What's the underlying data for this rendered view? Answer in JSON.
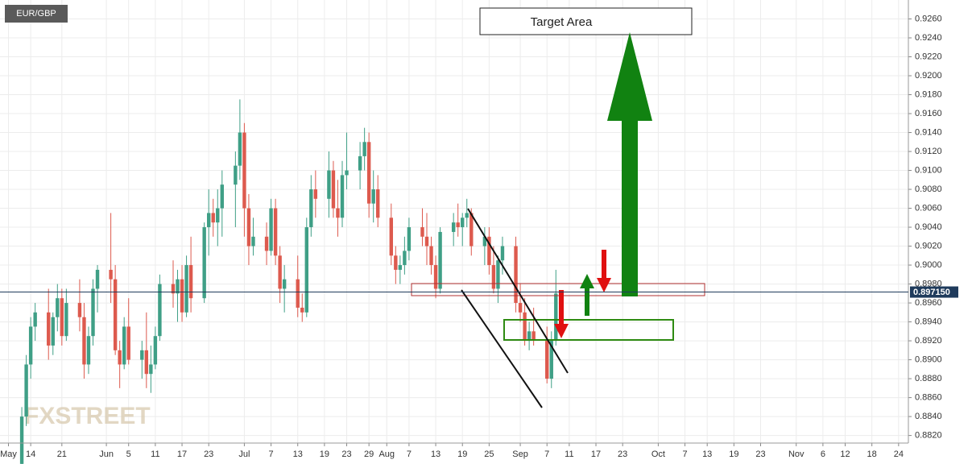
{
  "chart_data": {
    "type": "candlestick",
    "title": "EUR/GBP",
    "annotation": "Target Area",
    "watermark": "FXSTREET",
    "up_color": "#3f9f86",
    "down_color": "#dd5a4e",
    "grid": true,
    "xlim": [
      128.1,
      332.2
    ],
    "ylim": [
      0.8812,
      0.928
    ],
    "xticks": [
      {
        "value": 130,
        "label": "May"
      },
      {
        "value": 135,
        "label": "14"
      },
      {
        "value": 142,
        "label": "21"
      },
      {
        "value": 152,
        "label": "Jun"
      },
      {
        "value": 157,
        "label": "5"
      },
      {
        "value": 163,
        "label": "11"
      },
      {
        "value": 169,
        "label": "17"
      },
      {
        "value": 175,
        "label": "23"
      },
      {
        "value": 183,
        "label": "Jul"
      },
      {
        "value": 189,
        "label": "7"
      },
      {
        "value": 195,
        "label": "13"
      },
      {
        "value": 201,
        "label": "19"
      },
      {
        "value": 206,
        "label": "23"
      },
      {
        "value": 211,
        "label": "29"
      },
      {
        "value": 215,
        "label": "Aug"
      },
      {
        "value": 220,
        "label": "7"
      },
      {
        "value": 226,
        "label": "13"
      },
      {
        "value": 232,
        "label": "19"
      },
      {
        "value": 238,
        "label": "25"
      },
      {
        "value": 245,
        "label": "Sep"
      },
      {
        "value": 251,
        "label": "7"
      },
      {
        "value": 256,
        "label": "11"
      },
      {
        "value": 262,
        "label": "17"
      },
      {
        "value": 268,
        "label": "23"
      },
      {
        "value": 276,
        "label": "Oct"
      },
      {
        "value": 282,
        "label": "7"
      },
      {
        "value": 287,
        "label": "13"
      },
      {
        "value": 293,
        "label": "19"
      },
      {
        "value": 299,
        "label": "23"
      },
      {
        "value": 307,
        "label": "Nov"
      },
      {
        "value": 313,
        "label": "6"
      },
      {
        "value": 318,
        "label": "12"
      },
      {
        "value": 324,
        "label": "18"
      },
      {
        "value": 330,
        "label": "24"
      }
    ],
    "yticks": [
      {
        "value": 0.882,
        "label": "0.8820"
      },
      {
        "value": 0.884,
        "label": "0.8840"
      },
      {
        "value": 0.886,
        "label": "0.8860"
      },
      {
        "value": 0.888,
        "label": "0.8880"
      },
      {
        "value": 0.89,
        "label": "0.8900"
      },
      {
        "value": 0.892,
        "label": "0.8920"
      },
      {
        "value": 0.894,
        "label": "0.8940"
      },
      {
        "value": 0.896,
        "label": "0.8960"
      },
      {
        "value": 0.898,
        "label": "0.8980"
      },
      {
        "value": 0.9,
        "label": "0.9000"
      },
      {
        "value": 0.902,
        "label": "0.9020"
      },
      {
        "value": 0.904,
        "label": "0.9040"
      },
      {
        "value": 0.906,
        "label": "0.9060"
      },
      {
        "value": 0.908,
        "label": "0.9080"
      },
      {
        "value": 0.91,
        "label": "0.9100"
      },
      {
        "value": 0.912,
        "label": "0.9120"
      },
      {
        "value": 0.914,
        "label": "0.9140"
      },
      {
        "value": 0.916,
        "label": "0.9160"
      },
      {
        "value": 0.918,
        "label": "0.9180"
      },
      {
        "value": 0.92,
        "label": "0.9200"
      },
      {
        "value": 0.922,
        "label": "0.9220"
      },
      {
        "value": 0.924,
        "label": "0.9240"
      },
      {
        "value": 0.926,
        "label": "0.9260"
      }
    ],
    "last_price": {
      "value": 0.89715,
      "label": "0.897150",
      "color": "#1f3b5c"
    },
    "x": [
      133,
      134,
      135,
      136,
      139,
      140,
      141,
      142,
      143,
      146,
      147,
      148,
      149,
      150,
      153,
      154,
      155,
      156,
      157,
      160,
      161,
      162,
      163,
      164,
      167,
      168,
      169,
      170,
      171,
      174,
      175,
      176,
      177,
      178,
      181,
      182,
      183,
      184,
      185,
      188,
      189,
      190,
      191,
      192,
      195,
      196,
      197,
      198,
      199,
      202,
      203,
      204,
      205,
      206,
      209,
      210,
      211,
      212,
      213,
      216,
      217,
      218,
      219,
      220,
      223,
      224,
      225,
      226,
      227,
      230,
      231,
      232,
      233,
      234,
      237,
      238,
      239,
      240,
      241,
      244,
      245,
      246,
      247,
      248,
      251,
      252,
      253
    ],
    "open": [
      0.879,
      0.884,
      0.8895,
      0.8935,
      0.895,
      0.8915,
      0.8945,
      0.8965,
      0.8925,
      0.896,
      0.8945,
      0.8895,
      0.8925,
      0.8975,
      0.8995,
      0.8985,
      0.891,
      0.8895,
      0.8935,
      0.89,
      0.891,
      0.8885,
      0.8895,
      0.8925,
      0.898,
      0.897,
      0.8985,
      0.895,
      0.9,
      0.8965,
      0.904,
      0.9055,
      0.9045,
      0.906,
      0.9085,
      0.9105,
      0.914,
      0.906,
      0.902,
      0.903,
      0.9015,
      0.906,
      0.901,
      0.8975,
      0.8985,
      0.8955,
      0.895,
      0.904,
      0.908,
      0.907,
      0.91,
      0.906,
      0.905,
      0.9095,
      0.91,
      0.9115,
      0.913,
      0.9065,
      0.908,
      0.905,
      0.901,
      0.8995,
      0.9,
      0.9015,
      0.904,
      0.903,
      0.902,
      0.9,
      0.8975,
      0.9035,
      0.9045,
      0.904,
      0.905,
      0.9055,
      0.902,
      0.903,
      0.9,
      0.8975,
      0.9005,
      0.902,
      0.896,
      0.895,
      0.892,
      0.893,
      0.892,
      0.888,
      0.892
    ],
    "high": [
      0.885,
      0.8905,
      0.8945,
      0.896,
      0.8975,
      0.895,
      0.898,
      0.8975,
      0.8975,
      0.8985,
      0.896,
      0.8935,
      0.8985,
      0.9,
      0.9055,
      0.9,
      0.892,
      0.8945,
      0.8965,
      0.892,
      0.895,
      0.8915,
      0.8935,
      0.899,
      0.9005,
      0.8995,
      0.9,
      0.901,
      0.903,
      0.9045,
      0.908,
      0.907,
      0.908,
      0.91,
      0.912,
      0.9175,
      0.915,
      0.9075,
      0.905,
      0.9045,
      0.907,
      0.907,
      0.902,
      0.9,
      0.901,
      0.897,
      0.905,
      0.9095,
      0.91,
      0.912,
      0.911,
      0.909,
      0.911,
      0.914,
      0.913,
      0.9145,
      0.914,
      0.91,
      0.9095,
      0.9065,
      0.902,
      0.901,
      0.903,
      0.905,
      0.906,
      0.9055,
      0.903,
      0.901,
      0.904,
      0.9055,
      0.9065,
      0.9055,
      0.907,
      0.906,
      0.904,
      0.904,
      0.902,
      0.901,
      0.903,
      0.903,
      0.898,
      0.8965,
      0.894,
      0.8955,
      0.8935,
      0.893,
      0.8995
    ],
    "low": [
      0.877,
      0.883,
      0.888,
      0.892,
      0.89,
      0.8905,
      0.893,
      0.8915,
      0.892,
      0.893,
      0.888,
      0.8885,
      0.8915,
      0.895,
      0.896,
      0.8905,
      0.887,
      0.889,
      0.8895,
      0.888,
      0.887,
      0.8865,
      0.889,
      0.892,
      0.8955,
      0.894,
      0.894,
      0.8945,
      0.895,
      0.896,
      0.901,
      0.903,
      0.902,
      0.903,
      0.904,
      0.909,
      0.903,
      0.9,
      0.901,
      0.9,
      0.901,
      0.9,
      0.896,
      0.895,
      0.8945,
      0.894,
      0.8945,
      0.903,
      0.905,
      0.905,
      0.905,
      0.903,
      0.904,
      0.908,
      0.908,
      0.91,
      0.905,
      0.9045,
      0.904,
      0.9,
      0.898,
      0.898,
      0.899,
      0.9005,
      0.902,
      0.9,
      0.899,
      0.8965,
      0.897,
      0.902,
      0.903,
      0.902,
      0.904,
      0.901,
      0.9,
      0.899,
      0.897,
      0.896,
      0.899,
      0.895,
      0.894,
      0.8915,
      0.891,
      0.8915,
      0.8875,
      0.887,
      0.8915
    ],
    "close": [
      0.884,
      0.8895,
      0.8935,
      0.895,
      0.8915,
      0.8945,
      0.8965,
      0.8925,
      0.896,
      0.8945,
      0.8895,
      0.8925,
      0.8975,
      0.8995,
      0.8985,
      0.891,
      0.8895,
      0.8935,
      0.89,
      0.891,
      0.8885,
      0.8895,
      0.8925,
      0.898,
      0.897,
      0.8985,
      0.895,
      0.9,
      0.8965,
      0.904,
      0.9055,
      0.9045,
      0.906,
      0.9085,
      0.9105,
      0.914,
      0.906,
      0.902,
      0.903,
      0.9015,
      0.906,
      0.901,
      0.8975,
      0.8985,
      0.8955,
      0.895,
      0.904,
      0.908,
      0.907,
      0.91,
      0.906,
      0.905,
      0.9095,
      0.91,
      0.9115,
      0.913,
      0.9065,
      0.908,
      0.905,
      0.901,
      0.8995,
      0.9,
      0.9015,
      0.904,
      0.903,
      0.902,
      0.9,
      0.8975,
      0.9035,
      0.9045,
      0.904,
      0.905,
      0.9055,
      0.902,
      0.903,
      0.9,
      0.8975,
      0.9005,
      0.902,
      0.896,
      0.895,
      0.892,
      0.893,
      0.892,
      0.888,
      0.892,
      0.897
    ]
  }
}
